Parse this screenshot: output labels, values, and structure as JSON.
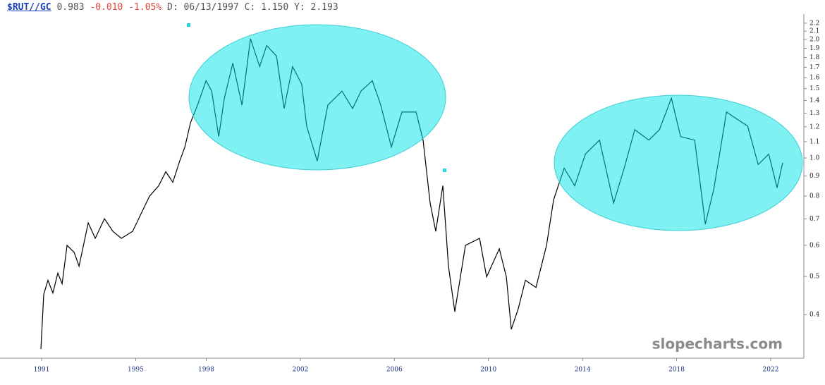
{
  "chart_data": {
    "type": "line",
    "header": {
      "symbol": "$RUT//GC",
      "last": "0.983",
      "change": "-0.010",
      "change_pct": "-1.05%",
      "cursor": "D: 06/13/1997 C: 1.150 Y: 2.193"
    },
    "watermark": "slopecharts.com",
    "log_y": true,
    "x": [
      1990.97,
      1991.09,
      1991.27,
      1991.48,
      1991.69,
      1991.87,
      1992.08,
      1992.38,
      1992.59,
      1992.98,
      1993.28,
      1993.67,
      1994.03,
      1994.39,
      1994.87,
      1995.23,
      1995.59,
      1995.98,
      1996.28,
      1996.58,
      1996.87,
      1997.09,
      1997.33,
      1997.63,
      1997.99,
      1998.23,
      1998.53,
      1998.77,
      1999.13,
      1999.52,
      1999.88,
      2000.27,
      2000.57,
      2000.99,
      2001.31,
      2001.67,
      2002.06,
      2002.27,
      2002.72,
      2003.17,
      2003.77,
      2004.22,
      2004.58,
      2005.06,
      2005.42,
      2005.87,
      2006.32,
      2006.92,
      2007.22,
      2007.52,
      2007.76,
      2008.06,
      2008.3,
      2008.57,
      2009.02,
      2009.62,
      2009.92,
      2010.46,
      2010.76,
      2010.97,
      2011.27,
      2011.57,
      2012.02,
      2012.47,
      2012.77,
      2013.22,
      2013.67,
      2014.12,
      2014.72,
      2015.32,
      2015.77,
      2016.22,
      2016.82,
      2017.27,
      2017.78,
      2018.17,
      2018.77,
      2019.22,
      2019.58,
      2020.12,
      2020.57,
      2021.02,
      2021.47,
      2021.92,
      2022.27,
      2022.51
    ],
    "series": [
      {
        "name": "$RUT//GC",
        "color": "#000000",
        "values": [
          0.327,
          0.45,
          0.489,
          0.454,
          0.51,
          0.479,
          0.6,
          0.576,
          0.531,
          0.684,
          0.625,
          0.701,
          0.651,
          0.625,
          0.651,
          0.722,
          0.8,
          0.85,
          0.923,
          0.868,
          0.982,
          1.066,
          1.23,
          1.362,
          1.572,
          1.479,
          1.133,
          1.419,
          1.742,
          1.362,
          2.01,
          1.707,
          1.93,
          1.815,
          1.335,
          1.707,
          1.54,
          1.205,
          0.982,
          1.362,
          1.479,
          1.335,
          1.479,
          1.572,
          1.362,
          1.066,
          1.308,
          1.308,
          1.11,
          0.768,
          0.651,
          0.85,
          0.531,
          0.407,
          0.6,
          0.625,
          0.499,
          0.588,
          0.499,
          0.367,
          0.415,
          0.489,
          0.469,
          0.6,
          0.783,
          0.942,
          0.85,
          1.023,
          1.11,
          0.768,
          0.942,
          1.18,
          1.11,
          1.18,
          1.419,
          1.133,
          1.11,
          0.679,
          0.833,
          1.308,
          1.255,
          1.205,
          0.962,
          1.023,
          0.84,
          0.973
        ]
      }
    ],
    "xlim": [
      1989.23,
      2023.41
    ],
    "xticks": [
      1991,
      1995,
      1998,
      2002,
      2006,
      2010,
      2014,
      2018,
      2022
    ],
    "ylim": [
      0.31,
      2.32
    ],
    "yticks": [
      0.4,
      0.5,
      0.6,
      0.7,
      0.8,
      0.9,
      {
        "value": 1,
        "label": "1.0"
      },
      1.1,
      1.2,
      1.3,
      1.4,
      1.5,
      1.6,
      1.7,
      1.8,
      1.9,
      {
        "value": 2,
        "label": "2.0"
      },
      2.1,
      2.2
    ]
  }
}
